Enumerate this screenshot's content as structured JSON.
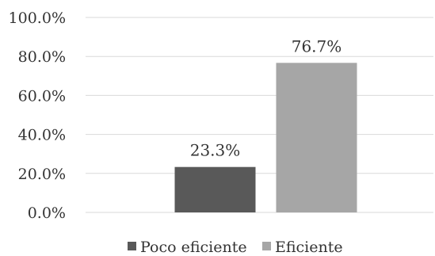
{
  "chart_data": {
    "type": "bar",
    "categories": [
      ""
    ],
    "series": [
      {
        "name": "Poco eficiente",
        "values": [
          23.3
        ],
        "label": "23.3%",
        "color": "#595959"
      },
      {
        "name": "Eficiente",
        "values": [
          76.7
        ],
        "label": "76.7%",
        "color": "#a6a6a6"
      }
    ],
    "ylim": [
      0,
      100
    ],
    "y_ticks": [
      0,
      20,
      40,
      60,
      80,
      100
    ],
    "y_tick_labels": [
      "0.0%",
      "20.0%",
      "40.0%",
      "60.0%",
      "80.0%",
      "100.0%"
    ],
    "grid": true,
    "legend_position": "bottom",
    "title": "",
    "xlabel": "",
    "ylabel": ""
  }
}
